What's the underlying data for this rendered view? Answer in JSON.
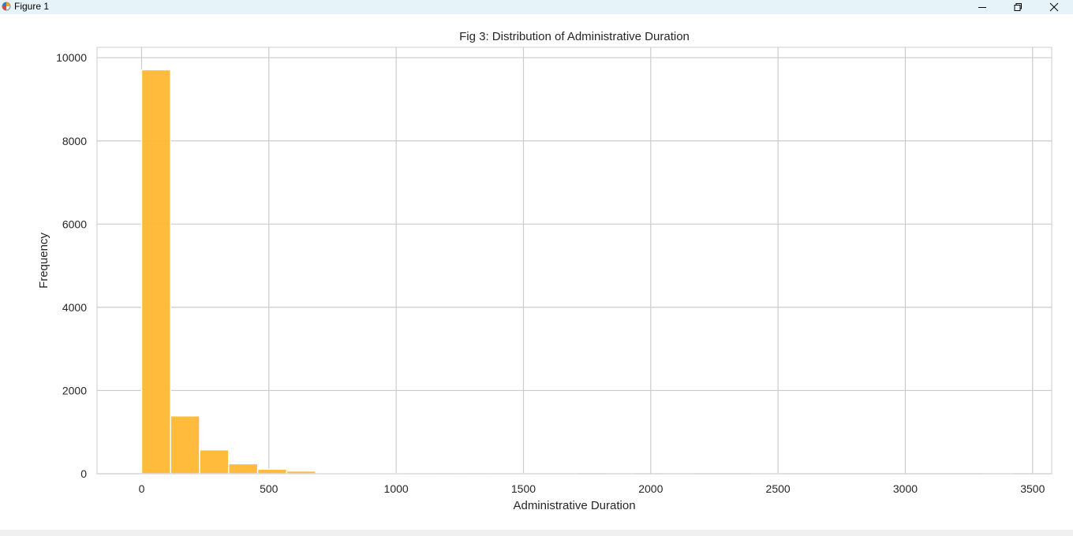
{
  "window": {
    "title": "Figure 1",
    "buttons": {
      "minimize_icon": "minimize-icon",
      "maximize_icon": "restore-icon",
      "close_icon": "close-icon"
    }
  },
  "chart_data": {
    "type": "bar",
    "title": "Fig 3: Distribution of Administrative Duration",
    "xlabel": "Administrative Duration",
    "ylabel": "Frequency",
    "xlim": [
      -175,
      3575
    ],
    "ylim": [
      0,
      10250
    ],
    "xticks": [
      0,
      500,
      1000,
      1500,
      2000,
      2500,
      3000,
      3500
    ],
    "yticks": [
      0,
      2000,
      4000,
      6000,
      8000,
      10000
    ],
    "bins": [
      {
        "start": 0,
        "end": 114,
        "value": 9710
      },
      {
        "start": 114,
        "end": 228,
        "value": 1390
      },
      {
        "start": 228,
        "end": 342,
        "value": 575
      },
      {
        "start": 342,
        "end": 456,
        "value": 240
      },
      {
        "start": 456,
        "end": 570,
        "value": 110
      },
      {
        "start": 570,
        "end": 684,
        "value": 65
      },
      {
        "start": 684,
        "end": 798,
        "value": 25
      },
      {
        "start": 798,
        "end": 912,
        "value": 15
      },
      {
        "start": 912,
        "end": 1026,
        "value": 8
      },
      {
        "start": 1026,
        "end": 1140,
        "value": 4
      },
      {
        "start": 1140,
        "end": 1254,
        "value": 3
      },
      {
        "start": 1254,
        "end": 1368,
        "value": 2
      },
      {
        "start": 1368,
        "end": 1482,
        "value": 1
      },
      {
        "start": 1482,
        "end": 1596,
        "value": 1
      },
      {
        "start": 1596,
        "end": 1710,
        "value": 1
      },
      {
        "start": 1710,
        "end": 1824,
        "value": 0
      },
      {
        "start": 1824,
        "end": 1938,
        "value": 1
      },
      {
        "start": 1938,
        "end": 2052,
        "value": 0
      },
      {
        "start": 2052,
        "end": 2166,
        "value": 1
      },
      {
        "start": 2166,
        "end": 2280,
        "value": 0
      },
      {
        "start": 2280,
        "end": 2394,
        "value": 0
      },
      {
        "start": 2394,
        "end": 2508,
        "value": 1
      },
      {
        "start": 2508,
        "end": 2622,
        "value": 0
      },
      {
        "start": 2622,
        "end": 2736,
        "value": 0
      },
      {
        "start": 2736,
        "end": 2850,
        "value": 0
      },
      {
        "start": 2850,
        "end": 2964,
        "value": 0
      },
      {
        "start": 2964,
        "end": 3078,
        "value": 0
      },
      {
        "start": 3078,
        "end": 3192,
        "value": 0
      },
      {
        "start": 3192,
        "end": 3306,
        "value": 0
      },
      {
        "start": 3306,
        "end": 3420,
        "value": 1
      }
    ],
    "grid": true,
    "colors": {
      "bar": "#ffb732",
      "bar_edge": "#ffffff",
      "grid": "#cccccc",
      "axes": "#cccccc",
      "text": "#262626"
    }
  }
}
